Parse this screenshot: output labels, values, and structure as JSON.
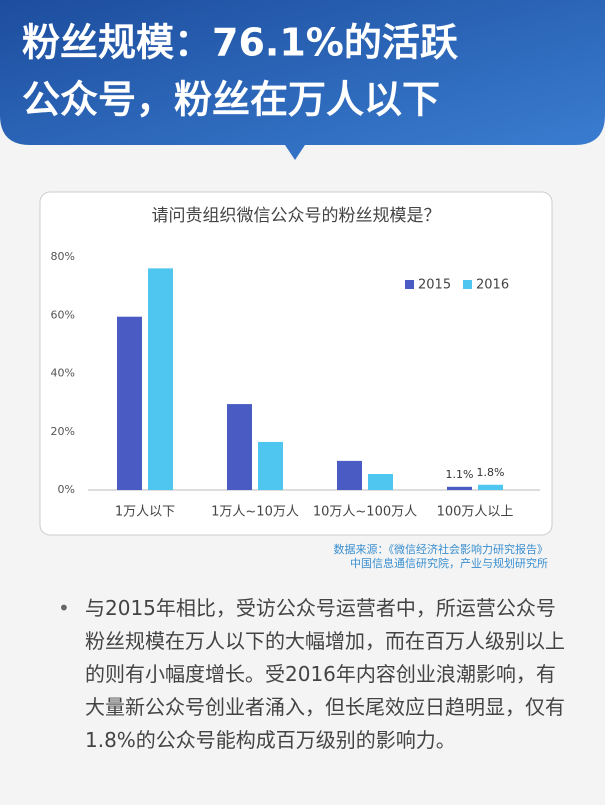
{
  "header": {
    "title_lines": [
      "粉丝规模：76.1%的活跃",
      "公众号，粉丝在万人以下"
    ]
  },
  "chart_data": {
    "type": "bar",
    "title": "请问贵组织微信公众号的粉丝规模是？",
    "categories": [
      "1万人以下",
      "1万人~10万人",
      "10万人~100万人",
      "100万人以上"
    ],
    "series": [
      {
        "name": "2015",
        "color": "#4a5cc4",
        "values": [
          59.5,
          29.5,
          10,
          1.1
        ],
        "value_labels": [
          null,
          null,
          null,
          "1.1%"
        ]
      },
      {
        "name": "2016",
        "color": "#4fc6f0",
        "values": [
          76.1,
          16.5,
          5.5,
          1.8
        ],
        "value_labels": [
          null,
          null,
          null,
          "1.8%"
        ]
      }
    ],
    "ylim": [
      0,
      80
    ],
    "yticks": [
      {
        "value": 0,
        "label": "0%"
      },
      {
        "value": 20,
        "label": "20%"
      },
      {
        "value": 40,
        "label": "40%"
      },
      {
        "value": 60,
        "label": "60%"
      },
      {
        "value": 80,
        "label": "80%"
      }
    ],
    "grid": false,
    "legend": "top-right"
  },
  "source": [
    "数据来源：《微信经济社会影响力研究报告》",
    "中国信息通信研究院，产业与规划研究所"
  ],
  "bullet": "与2015年相比，受访公众号运营者中，所运营公众号粉丝规模在万人以下的大幅增加，而在百万人级别以上的则有小幅度增长。受2016年内容创业浪潮影响，有大量新公众号创业者涌入，但长尾效应日趋明显，仅有1.8%的公众号能构成百万级别的影响力。"
}
